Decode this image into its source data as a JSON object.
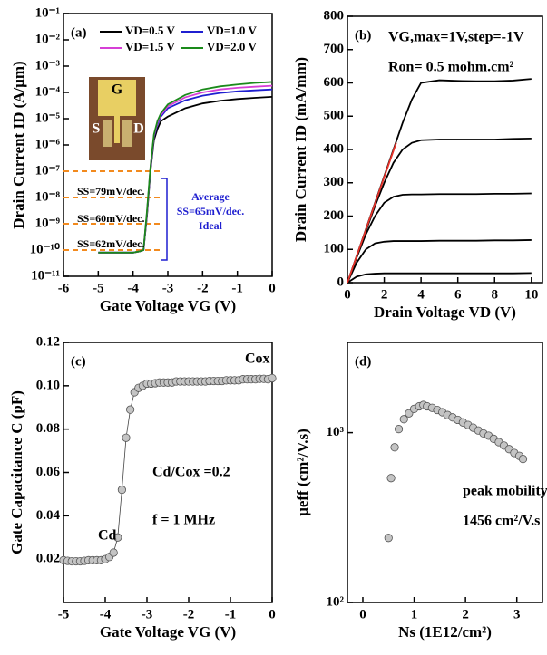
{
  "chart_data": [
    {
      "type": "line",
      "panel": "(a)",
      "ylog": true,
      "xlabel": "Gate Voltage VG (V)",
      "ylabel": "Drain Current ID (A/μm)",
      "x": [
        -5,
        -4.5,
        -4,
        -3.8,
        -3.7,
        -3.6,
        -3.5,
        -3.4,
        -3.3,
        -3.2,
        -3,
        -2.5,
        -2,
        -1.5,
        -1,
        -0.5,
        0
      ],
      "xlim": [
        -6,
        0
      ],
      "xticks": [
        -6,
        -5,
        -4,
        -3,
        -2,
        -1,
        0
      ],
      "ylim": [
        1e-11,
        0.1
      ],
      "yticks": [
        {
          "value": 1e-11,
          "label": "10⁻¹¹"
        },
        {
          "value": 1e-10,
          "label": "10⁻¹⁰"
        },
        {
          "value": 1e-09,
          "label": "10⁻⁹"
        },
        {
          "value": 1e-08,
          "label": "10⁻⁸"
        },
        {
          "value": 1e-07,
          "label": "10⁻⁷"
        },
        {
          "value": 1e-06,
          "label": "10⁻⁶"
        },
        {
          "value": 1e-05,
          "label": "10⁻⁵"
        },
        {
          "value": 0.0001,
          "label": "10⁻⁴"
        },
        {
          "value": 0.001,
          "label": "10⁻³"
        },
        {
          "value": 0.01,
          "label": "10⁻²"
        },
        {
          "value": 0.1,
          "label": "10⁻¹"
        }
      ],
      "series": [
        {
          "name": "VD=0.5 V",
          "color": "#000000",
          "values": [
            8e-11,
            8e-11,
            8e-11,
            9e-11,
            1e-10,
            2e-09,
            1e-07,
            1.5e-06,
            4e-06,
            8e-06,
            1.2e-05,
            2.5e-05,
            3.8e-05,
            4.8e-05,
            5.6e-05,
            6.2e-05,
            6.8e-05
          ]
        },
        {
          "name": "VD=1.0 V",
          "color": "#1f1fd0",
          "values": [
            8e-11,
            8e-11,
            8e-11,
            9e-11,
            1e-10,
            2.5e-09,
            1.2e-07,
            2e-06,
            6e-06,
            1.2e-05,
            2.5e-05,
            5e-05,
            7.5e-05,
            9.5e-05,
            0.00011,
            0.00012,
            0.00013
          ]
        },
        {
          "name": "VD=1.5 V",
          "color": "#d63fd6",
          "values": [
            8e-11,
            8e-11,
            8e-11,
            9e-11,
            1e-10,
            2.5e-09,
            1.3e-07,
            2.2e-06,
            7e-06,
            1.4e-05,
            3e-05,
            6.5e-05,
            0.0001,
            0.00013,
            0.00015,
            0.000165,
            0.00018
          ]
        },
        {
          "name": "VD=2.0 V",
          "color": "#1a8a1a",
          "values": [
            8e-11,
            8e-11,
            8e-11,
            9e-11,
            1e-10,
            3e-09,
            1.4e-07,
            2.5e-06,
            8e-06,
            1.6e-05,
            3.5e-05,
            8e-05,
            0.00013,
            0.00017,
            0.0002,
            0.00023,
            0.00025
          ]
        }
      ],
      "reference_lines": {
        "color": "#f28a1e",
        "values": [
          1e-07,
          1e-08,
          1e-09,
          1e-10
        ]
      },
      "inset_labels": [
        "G",
        "S",
        "D"
      ],
      "annotations": [
        "SS=79mV/dec.",
        "SS=60mV/dec.",
        "SS=62mV/dec.",
        "Average",
        "SS=65mV/dec.",
        "Ideal"
      ]
    },
    {
      "type": "line",
      "panel": "(b)",
      "xlabel": "Drain Voltage VD (V)",
      "ylabel": "Drain Current ID (mA/mm)",
      "x": [
        0,
        0.5,
        1,
        1.5,
        2,
        2.5,
        3,
        3.5,
        4,
        5,
        6,
        7,
        8,
        9,
        10
      ],
      "xlim": [
        0,
        10.6
      ],
      "xticks": [
        0,
        2,
        4,
        6,
        8,
        10
      ],
      "ylim": [
        0,
        800
      ],
      "yticks": [
        0,
        100,
        200,
        300,
        400,
        500,
        600,
        700,
        800
      ],
      "series": [
        {
          "color": "#000000",
          "values": [
            0,
            80,
            160,
            240,
            320,
            400,
            480,
            550,
            600,
            608,
            606,
            605,
            605,
            607,
            612
          ]
        },
        {
          "color": "#000000",
          "values": [
            0,
            78,
            155,
            230,
            300,
            360,
            400,
            420,
            428,
            430,
            430,
            430,
            430,
            432,
            433
          ]
        },
        {
          "color": "#000000",
          "values": [
            0,
            75,
            145,
            200,
            240,
            258,
            264,
            265,
            265,
            266,
            266,
            266,
            267,
            267,
            268
          ]
        },
        {
          "color": "#000000",
          "values": [
            0,
            60,
            100,
            118,
            123,
            125,
            125,
            125,
            125,
            126,
            126,
            126,
            127,
            127,
            128
          ]
        },
        {
          "color": "#000000",
          "values": [
            0,
            18,
            25,
            27,
            28,
            28,
            28,
            28,
            28,
            28,
            28,
            28,
            28,
            28,
            29
          ]
        }
      ],
      "fit": {
        "color": "#e8322a",
        "x": [
          0,
          2.65
        ],
        "values": [
          0,
          420
        ]
      },
      "annotations": [
        "VG,max=1V,step=-1V",
        "Ron= 0.5 mohm.cm²"
      ]
    },
    {
      "type": "scatter",
      "panel": "(c)",
      "connect": true,
      "color": "#c4c4c4",
      "xlabel": "Gate Voltage VG (V)",
      "ylabel": "Gate Capacitance C (pF)",
      "x": [
        -5,
        -4.9,
        -4.8,
        -4.7,
        -4.6,
        -4.5,
        -4.4,
        -4.3,
        -4.2,
        -4.1,
        -4,
        -3.9,
        -3.8,
        -3.7,
        -3.6,
        -3.5,
        -3.4,
        -3.3,
        -3.2,
        -3.1,
        -3,
        -2.9,
        -2.8,
        -2.7,
        -2.6,
        -2.5,
        -2.4,
        -2.3,
        -2.2,
        -2.1,
        -2,
        -1.9,
        -1.8,
        -1.7,
        -1.6,
        -1.5,
        -1.4,
        -1.3,
        -1.2,
        -1.1,
        -1,
        -0.9,
        -0.8,
        -0.7,
        -0.6,
        -0.5,
        -0.4,
        -0.3,
        -0.2,
        -0.1,
        0
      ],
      "values": [
        0.0195,
        0.0192,
        0.019,
        0.019,
        0.019,
        0.0192,
        0.0195,
        0.0195,
        0.0195,
        0.0195,
        0.02,
        0.021,
        0.023,
        0.03,
        0.052,
        0.076,
        0.089,
        0.097,
        0.099,
        0.1,
        0.101,
        0.101,
        0.1012,
        0.1015,
        0.1015,
        0.1015,
        0.1015,
        0.102,
        0.102,
        0.102,
        0.102,
        0.102,
        0.102,
        0.102,
        0.102,
        0.1022,
        0.1022,
        0.1022,
        0.1022,
        0.1025,
        0.1025,
        0.1025,
        0.1025,
        0.103,
        0.103,
        0.103,
        0.103,
        0.1032,
        0.1032,
        0.103,
        0.1035
      ],
      "xlim": [
        -5,
        0
      ],
      "xticks": [
        -5,
        -4,
        -3,
        -2,
        -1,
        0
      ],
      "ylim": [
        0,
        0.12
      ],
      "yticks": [
        0.02,
        0.04,
        0.06,
        0.08,
        {
          "value": 0.1,
          "label": "0.10"
        },
        0.12
      ],
      "annotations": [
        "Cox",
        "Cd",
        "Cd/Cox =0.2",
        "f = 1 MHz"
      ]
    },
    {
      "type": "scatter",
      "panel": "(d)",
      "ylog": true,
      "color": "#c4c4c4",
      "xlabel": "Ns (1E12/cm²)",
      "ylabel": "μeff (cm²/V.s)",
      "x": [
        0.5,
        0.55,
        0.62,
        0.7,
        0.8,
        0.9,
        1.0,
        1.1,
        1.18,
        1.25,
        1.35,
        1.45,
        1.55,
        1.65,
        1.75,
        1.85,
        1.95,
        2.05,
        2.15,
        2.25,
        2.35,
        2.45,
        2.55,
        2.65,
        2.75,
        2.85,
        2.95,
        3.05,
        3.12
      ],
      "values": [
        240,
        540,
        820,
        1050,
        1200,
        1300,
        1380,
        1430,
        1456,
        1430,
        1400,
        1360,
        1320,
        1270,
        1230,
        1190,
        1150,
        1110,
        1070,
        1030,
        990,
        960,
        920,
        880,
        840,
        800,
        760,
        730,
        700
      ],
      "xlim": [
        -0.3,
        3.5
      ],
      "xticks": [
        0,
        1,
        2,
        3
      ],
      "ylim": [
        100,
        3400
      ],
      "yticks": [
        {
          "value": 100,
          "label": "10²"
        },
        {
          "value": 1000,
          "label": "10³"
        }
      ],
      "annotations": [
        "peak mobility",
        "1456 cm²/V.s"
      ]
    }
  ]
}
